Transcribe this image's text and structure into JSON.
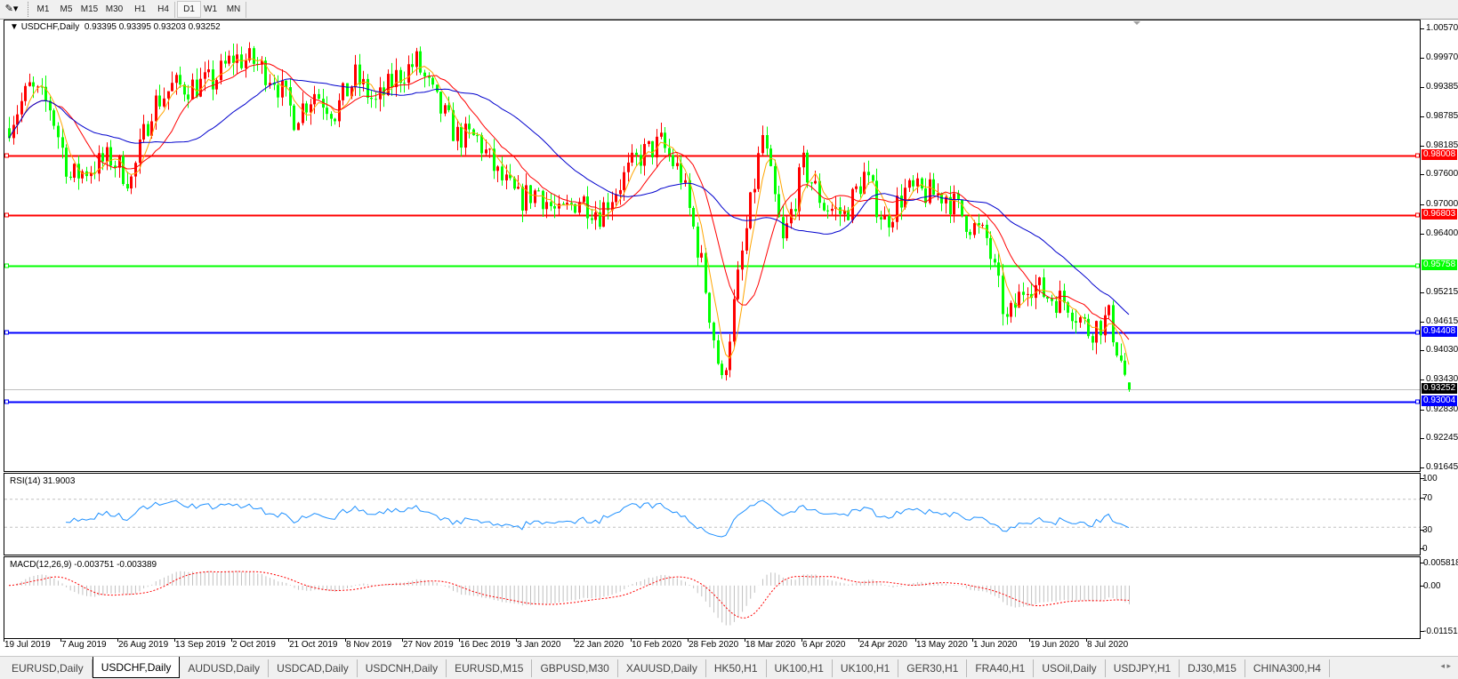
{
  "toolbar": {
    "tool_icon": "line-tool-icon",
    "timeframes": [
      "M1",
      "M5",
      "M15",
      "M30",
      "H1",
      "H4",
      "D1",
      "W1",
      "MN"
    ],
    "active_timeframe": "D1"
  },
  "chart_header": {
    "title": "USDCHF,Daily",
    "ohlc": "0.93395 0.93395 0.93203 0.93252"
  },
  "chart_data": {
    "type": "candlestick",
    "symbol": "USDCHF",
    "timeframe": "Daily",
    "bars_per_sample": 5,
    "closes_sampled": [
      0.9866,
      0.9937,
      0.99,
      0.9755,
      0.9776,
      0.9795,
      0.975,
      0.99,
      0.994,
      0.9942,
      0.995,
      1.0,
      0.999,
      0.996,
      0.988,
      0.993,
      0.989,
      0.996,
      0.9905,
      0.996,
      0.999,
      0.9905,
      0.984,
      0.9835,
      0.976,
      0.971,
      0.973,
      0.9675,
      0.9715,
      0.9685,
      0.9745,
      0.98,
      0.9825,
      0.976,
      0.958,
      0.9334,
      0.96,
      0.984,
      0.962,
      0.978,
      0.97,
      0.968,
      0.976,
      0.9665,
      0.9728,
      0.9723,
      0.972,
      0.967,
      0.963,
      0.946,
      0.9547,
      0.9515,
      0.9503,
      0.9445,
      0.947,
      0.93252
    ],
    "last_bar": {
      "open": 0.93395,
      "high": 0.93395,
      "low": 0.93203,
      "close": 0.93252
    },
    "bull_color": "#ff0000",
    "bear_color": "#00ff00",
    "moving_averages": [
      {
        "color": "#ffa500"
      },
      {
        "color": "#ff0000"
      },
      {
        "color": "#0000cd"
      }
    ],
    "price_ticks": [
      "1.00570",
      "0.99970",
      "0.99385",
      "0.98785",
      "0.98185",
      "0.97600",
      "0.97000",
      "0.96400",
      "0.95215",
      "0.94615",
      "0.94030",
      "0.93430",
      "0.92830",
      "0.92245",
      "0.91645"
    ],
    "ylim": [
      0.91645,
      1.0057
    ],
    "horizontal_lines": [
      {
        "price": "0.98008",
        "color": "#ff0000"
      },
      {
        "price": "0.96803",
        "color": "#ff0000"
      },
      {
        "price": "0.95758",
        "color": "#00ff00"
      },
      {
        "price": "0.94408",
        "color": "#0000ff"
      },
      {
        "price": "0.93004",
        "color": "#0000ff"
      }
    ],
    "current_price": {
      "price": "0.93252",
      "color": "#000000"
    },
    "date_ticks": [
      "19 Jul 2019",
      "7 Aug 2019",
      "26 Aug 2019",
      "13 Sep 2019",
      "2 Oct 2019",
      "21 Oct 2019",
      "8 Nov 2019",
      "27 Nov 2019",
      "16 Dec 2019",
      "3 Jan 2020",
      "22 Jan 2020",
      "10 Feb 2020",
      "28 Feb 2020",
      "18 Mar 2020",
      "6 Apr 2020",
      "24 Apr 2020",
      "13 May 2020",
      "1 Jun 2020",
      "19 Jun 2020",
      "8 Jul 2020"
    ],
    "rsi": {
      "label": "RSI(14) 31.9003",
      "period": 14,
      "levels": [
        70,
        30
      ],
      "ticks": [
        "100",
        "70",
        "30",
        "0"
      ],
      "color": "#1e90ff"
    },
    "macd": {
      "label": "MACD(12,26,9) -0.003751 -0.003389",
      "ticks": [
        "0.005818",
        "0.00",
        "-0.011514"
      ],
      "ylim": [
        -0.011514,
        0.005818
      ],
      "histogram_color": "#c0c0c0",
      "signal_color": "#ff0000"
    }
  },
  "tabs": [
    "EURUSD,Daily",
    "USDCHF,Daily",
    "AUDUSD,Daily",
    "USDCAD,Daily",
    "USDCNH,Daily",
    "EURUSD,M15",
    "GBPUSD,M30",
    "XAUUSD,Daily",
    "HK50,H1",
    "UK100,H1",
    "UK100,H1",
    "GER30,H1",
    "FRA40,H1",
    "USOil,Daily",
    "USDJPY,H1",
    "DJ30,M15",
    "CHINA300,H4"
  ],
  "active_tab": "USDCHF,Daily",
  "tab_scroll": "◂ ▸"
}
